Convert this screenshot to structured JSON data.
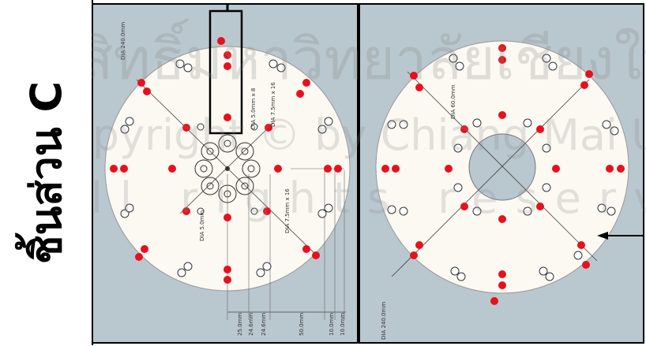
{
  "side_label": "ชิ้นส่วน C",
  "left_panel": {
    "dims": {
      "dia_outer": "DIA 240.0mm",
      "hole_small": "DIA 5.0mm x 8",
      "hole_medium": "DIA 7.5mm x 16",
      "hole_medium_2": "DIA 7.5mm x 16",
      "hole_center": "DIA 5.0mm",
      "offset_a": "25.0mm",
      "offset_b": "24.6mm",
      "offset_c": "24.6mm",
      "offset_d": "50.0mm",
      "offset_e": "10.0mm",
      "offset_f": "10.0mm"
    }
  },
  "right_panel": {
    "dims": {
      "dia_inner": "DIA 60.0mm",
      "dia_outer": "DIA 240.0mm"
    }
  },
  "watermark": {
    "line1": "ลิขสิทธิ์มหาวิทยาลัยเชียงใหม่",
    "line2": "Copyright © by Chiang Mai University",
    "line3": "All rights reserved"
  },
  "colors": {
    "panel_bg": "#b9c7cf",
    "disc": "#fbf9f2",
    "red_dot": "#e8101c",
    "callout_frame": "#000000"
  }
}
